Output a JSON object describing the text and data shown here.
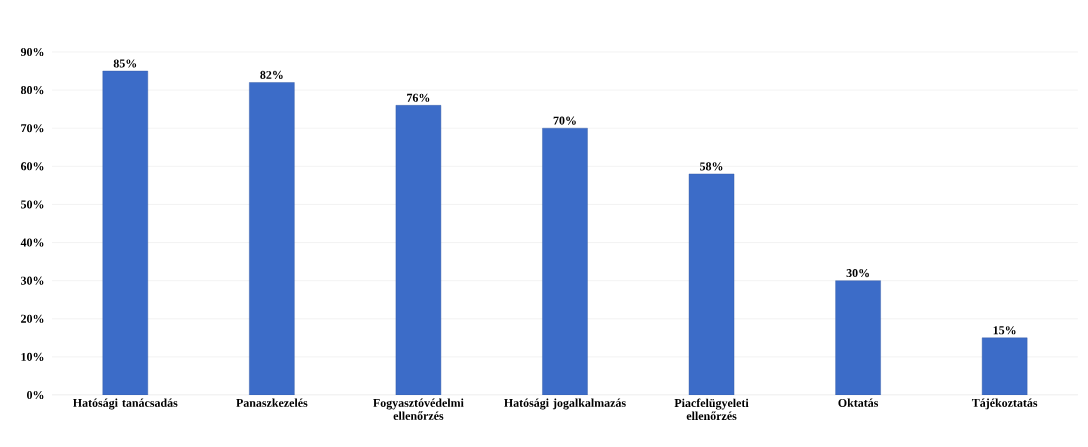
{
  "chart_data": {
    "type": "bar",
    "categories": [
      "Hatósági tanácsadás",
      "Panaszkezelés",
      "Fogyasztóvédelmi ellenőrzés",
      "Hatósági jogalkalmazás",
      "Piacfelügyeleti ellenőrzés",
      "Oktatás",
      "Tájékoztatás"
    ],
    "values": [
      85,
      82,
      76,
      70,
      58,
      30,
      15
    ],
    "value_labels": [
      "85%",
      "82%",
      "76%",
      "70%",
      "58%",
      "30%",
      "15%"
    ],
    "color": "#3c6cc8",
    "ylim": [
      0,
      90
    ],
    "yticks": [
      {
        "value": 0,
        "label": "0%"
      },
      {
        "value": 10,
        "label": "10%"
      },
      {
        "value": 20,
        "label": "20%"
      },
      {
        "value": 30,
        "label": "30%"
      },
      {
        "value": 40,
        "label": "40%"
      },
      {
        "value": 50,
        "label": "50%"
      },
      {
        "value": 60,
        "label": "60%"
      },
      {
        "value": 70,
        "label": "70%"
      },
      {
        "value": 80,
        "label": "80%"
      },
      {
        "value": 90,
        "label": "90%"
      }
    ],
    "grid": "y"
  }
}
